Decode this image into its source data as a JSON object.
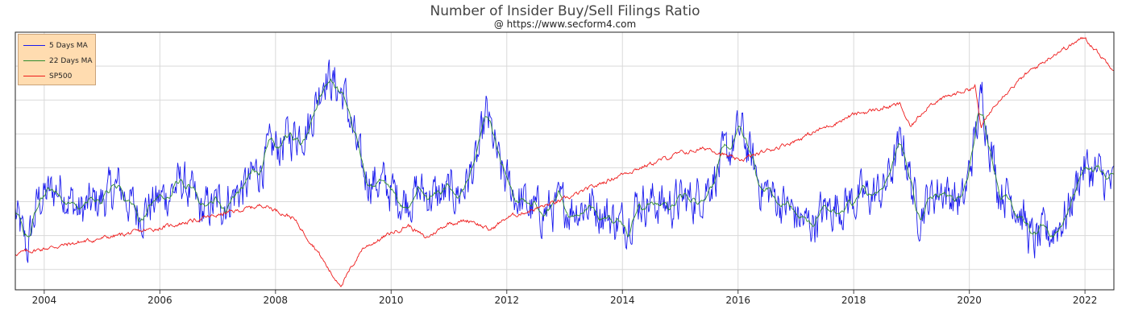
{
  "header": {
    "title": "Number of Insider Buy/Sell Filings Ratio",
    "subtitle": "@ https://www.secform4.com"
  },
  "colors": {
    "ma5": "#1a1aee",
    "ma22": "#2e8b2e",
    "sp500": "#ee1a1a",
    "grid": "#d9d9d9",
    "frame": "#222222",
    "legend_bg": "#ffdcb0"
  },
  "legend": {
    "items": [
      {
        "label": "5 Days MA",
        "color": "#1a1aee"
      },
      {
        "label": "22 Days MA",
        "color": "#2e8b2e"
      },
      {
        "label": "SP500",
        "color": "#ee1a1a"
      }
    ],
    "placement": "top-left"
  },
  "chart_data": {
    "type": "line",
    "title": "Number of Insider Buy/Sell Filings Ratio",
    "subtitle": "@ https://www.secform4.com",
    "xlabel": "",
    "ylabel": "",
    "x_ticks": [
      "2004",
      "2006",
      "2008",
      "2010",
      "2012",
      "2014",
      "2016",
      "2018",
      "2020",
      "2022"
    ],
    "x_range": [
      "2003.5",
      "2022.5"
    ],
    "y_tick_labels_shown": false,
    "grid": true,
    "legend_position": "top-left",
    "sp500_anchors": [
      [
        2003.5,
        0.14
      ],
      [
        2004.5,
        0.18
      ],
      [
        2005.0,
        0.2
      ],
      [
        2006.0,
        0.24
      ],
      [
        2007.0,
        0.29
      ],
      [
        2007.8,
        0.33
      ],
      [
        2008.3,
        0.28
      ],
      [
        2008.7,
        0.16
      ],
      [
        2009.0,
        0.05
      ],
      [
        2009.15,
        0.02
      ],
      [
        2009.5,
        0.16
      ],
      [
        2010.0,
        0.22
      ],
      [
        2010.3,
        0.25
      ],
      [
        2010.6,
        0.2
      ],
      [
        2011.0,
        0.26
      ],
      [
        2011.4,
        0.27
      ],
      [
        2011.7,
        0.23
      ],
      [
        2012.0,
        0.28
      ],
      [
        2013.0,
        0.35
      ],
      [
        2014.0,
        0.45
      ],
      [
        2015.0,
        0.53
      ],
      [
        2015.5,
        0.55
      ],
      [
        2016.0,
        0.5
      ],
      [
        2016.5,
        0.54
      ],
      [
        2017.0,
        0.58
      ],
      [
        2018.0,
        0.68
      ],
      [
        2018.8,
        0.72
      ],
      [
        2018.98,
        0.63
      ],
      [
        2019.3,
        0.72
      ],
      [
        2020.1,
        0.79
      ],
      [
        2020.2,
        0.63
      ],
      [
        2020.5,
        0.74
      ],
      [
        2021.0,
        0.84
      ],
      [
        2021.5,
        0.92
      ],
      [
        2022.0,
        0.98
      ],
      [
        2022.3,
        0.9
      ],
      [
        2022.5,
        0.86
      ]
    ],
    "ratio_5d_anchors": [
      [
        2003.5,
        0.3
      ],
      [
        2003.7,
        0.15
      ],
      [
        2003.9,
        0.35
      ],
      [
        2004.3,
        0.4
      ],
      [
        2004.6,
        0.3
      ],
      [
        2005.0,
        0.35
      ],
      [
        2005.3,
        0.4
      ],
      [
        2005.6,
        0.3
      ],
      [
        2006.0,
        0.35
      ],
      [
        2006.4,
        0.42
      ],
      [
        2006.7,
        0.3
      ],
      [
        2007.0,
        0.33
      ],
      [
        2007.5,
        0.4
      ],
      [
        2007.8,
        0.5
      ],
      [
        2008.0,
        0.55
      ],
      [
        2008.3,
        0.6
      ],
      [
        2008.6,
        0.65
      ],
      [
        2008.85,
        0.85
      ],
      [
        2009.0,
        0.8
      ],
      [
        2009.2,
        0.75
      ],
      [
        2009.5,
        0.45
      ],
      [
        2009.9,
        0.4
      ],
      [
        2010.2,
        0.35
      ],
      [
        2010.5,
        0.38
      ],
      [
        2010.8,
        0.36
      ],
      [
        2011.2,
        0.38
      ],
      [
        2011.5,
        0.5
      ],
      [
        2011.65,
        0.68
      ],
      [
        2011.9,
        0.45
      ],
      [
        2012.2,
        0.35
      ],
      [
        2012.5,
        0.3
      ],
      [
        2013.0,
        0.32
      ],
      [
        2013.5,
        0.33
      ],
      [
        2014.0,
        0.25
      ],
      [
        2014.3,
        0.35
      ],
      [
        2014.8,
        0.33
      ],
      [
        2015.3,
        0.36
      ],
      [
        2015.7,
        0.48
      ],
      [
        2016.05,
        0.62
      ],
      [
        2016.4,
        0.4
      ],
      [
        2016.8,
        0.33
      ],
      [
        2017.2,
        0.25
      ],
      [
        2017.6,
        0.32
      ],
      [
        2018.0,
        0.35
      ],
      [
        2018.5,
        0.38
      ],
      [
        2018.85,
        0.58
      ],
      [
        2019.1,
        0.3
      ],
      [
        2019.5,
        0.4
      ],
      [
        2019.9,
        0.33
      ],
      [
        2020.22,
        0.75
      ],
      [
        2020.5,
        0.4
      ],
      [
        2020.8,
        0.35
      ],
      [
        2021.1,
        0.18
      ],
      [
        2021.4,
        0.22
      ],
      [
        2021.7,
        0.3
      ],
      [
        2021.95,
        0.48
      ],
      [
        2022.2,
        0.45
      ],
      [
        2022.5,
        0.4
      ]
    ],
    "ratio_5d_volatility": 0.09,
    "notes_y_range": [
      0,
      1
    ]
  }
}
